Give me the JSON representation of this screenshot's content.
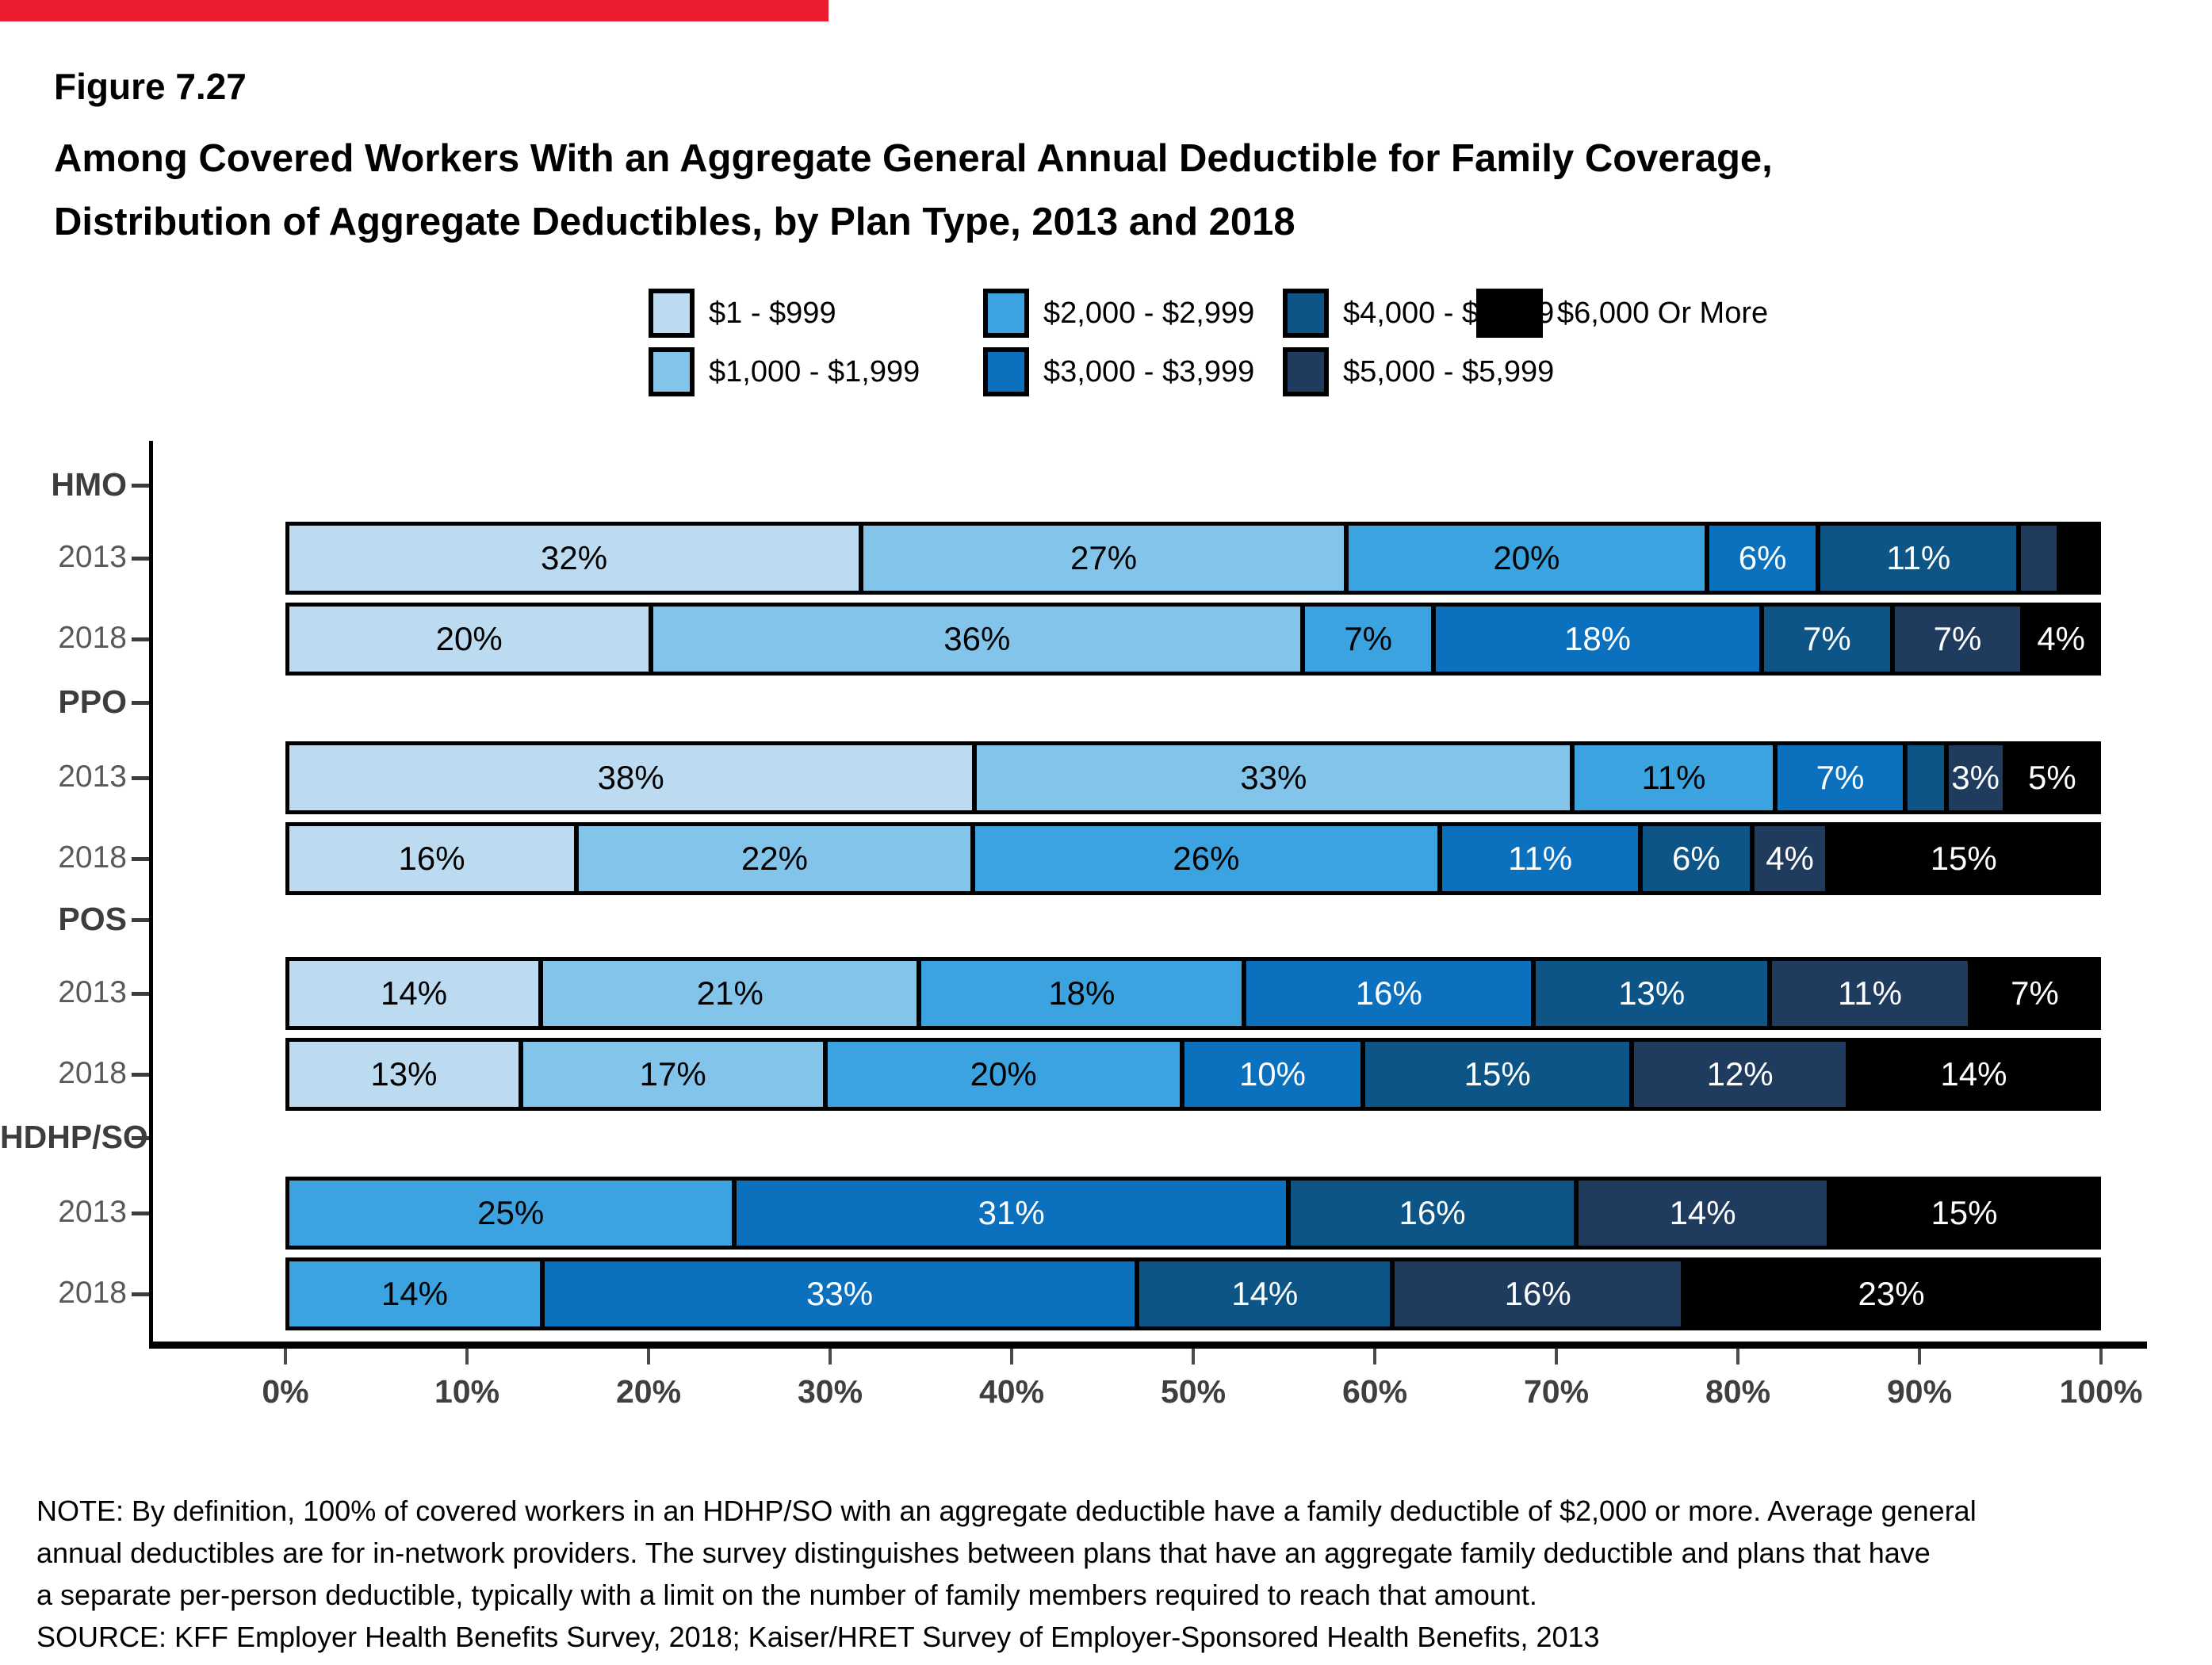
{
  "accent_color": "#EC1B2E",
  "figure_label": "Figure 7.27",
  "title_line1": "Among Covered Workers With an Aggregate General Annual Deductible for Family Coverage,",
  "title_line2": "Distribution of Aggregate Deductibles, by Plan Type, 2013 and 2018",
  "note_lines": {
    "0": "NOTE: By definition, 100% of covered workers in an HDHP/SO with an aggregate deductible have a family deductible of $2,000 or more. Average general",
    "1": "annual deductibles are for in-network providers. The survey distinguishes between plans that have an aggregate family deductible and plans that have",
    "2": "a separate per-person deductible, typically with a limit on the number of family members required to reach that amount."
  },
  "source": "SOURCE: KFF Employer Health Benefits Survey, 2018; Kaiser/HRET Survey of Employer-Sponsored Health Benefits, 2013",
  "chart_data": {
    "type": "bar",
    "stacked": true,
    "orientation": "horizontal",
    "title": "Distribution of Aggregate Deductibles, by Plan Type, 2013 and 2018",
    "xlabel": "",
    "ylabel": "",
    "xlim": [
      0,
      100
    ],
    "grid": false,
    "legend_position": "top",
    "x_ticks": [
      "0%",
      "10%",
      "20%",
      "30%",
      "40%",
      "50%",
      "60%",
      "70%",
      "80%",
      "90%",
      "100%"
    ],
    "categories": [
      "$1 - $999",
      "$1,000 - $1,999",
      "$2,000 - $2,999",
      "$3,000 - $3,999",
      "$4,000 - $4,999",
      "$5,000 - $5,999",
      "$6,000 Or More"
    ],
    "colors": [
      "#BCDBF0",
      "#82C4EA",
      "#3AA3E0",
      "#0B71BF",
      "#0D5586",
      "#1F3B5E",
      "#000000"
    ],
    "label_text_colors": [
      "#000000",
      "#000000",
      "#000000",
      "#ffffff",
      "#ffffff",
      "#ffffff",
      "#ffffff"
    ],
    "groups": [
      {
        "plan": "HMO",
        "rows": [
          {
            "year": "2013",
            "values": [
              32,
              27,
              20,
              6,
              11,
              2,
              2
            ],
            "labels": [
              "32%",
              "27%",
              "20%",
              "6%",
              "11%",
              "",
              ""
            ]
          },
          {
            "year": "2018",
            "values": [
              20,
              36,
              7,
              18,
              7,
              7,
              4
            ],
            "labels": [
              "20%",
              "36%",
              "7%",
              "18%",
              "7%",
              "7%",
              "4%"
            ]
          }
        ]
      },
      {
        "plan": "PPO",
        "rows": [
          {
            "year": "2013",
            "values": [
              38,
              33,
              11,
              7,
              2,
              3,
              5
            ],
            "labels": [
              "38%",
              "33%",
              "11%",
              "7%",
              "",
              "3%",
              "5%"
            ]
          },
          {
            "year": "2018",
            "values": [
              16,
              22,
              26,
              11,
              6,
              4,
              15
            ],
            "labels": [
              "16%",
              "22%",
              "26%",
              "11%",
              "6%",
              "4%",
              "15%"
            ]
          }
        ]
      },
      {
        "plan": "POS",
        "rows": [
          {
            "year": "2013",
            "values": [
              14,
              21,
              18,
              16,
              13,
              11,
              7
            ],
            "labels": [
              "14%",
              "21%",
              "18%",
              "16%",
              "13%",
              "11%",
              "7%"
            ]
          },
          {
            "year": "2018",
            "values": [
              13,
              17,
              20,
              10,
              15,
              12,
              14
            ],
            "labels": [
              "13%",
              "17%",
              "20%",
              "10%",
              "15%",
              "12%",
              "14%"
            ]
          }
        ]
      },
      {
        "plan": "HDHP/SO",
        "rows": [
          {
            "year": "2013",
            "values": [
              0,
              0,
              25,
              31,
              16,
              14,
              15
            ],
            "labels": [
              "",
              "",
              "25%",
              "31%",
              "16%",
              "14%",
              "15%"
            ]
          },
          {
            "year": "2018",
            "values": [
              0,
              0,
              14,
              33,
              14,
              16,
              23
            ],
            "labels": [
              "",
              "",
              "14%",
              "33%",
              "14%",
              "16%",
              "23%"
            ]
          }
        ]
      }
    ]
  }
}
